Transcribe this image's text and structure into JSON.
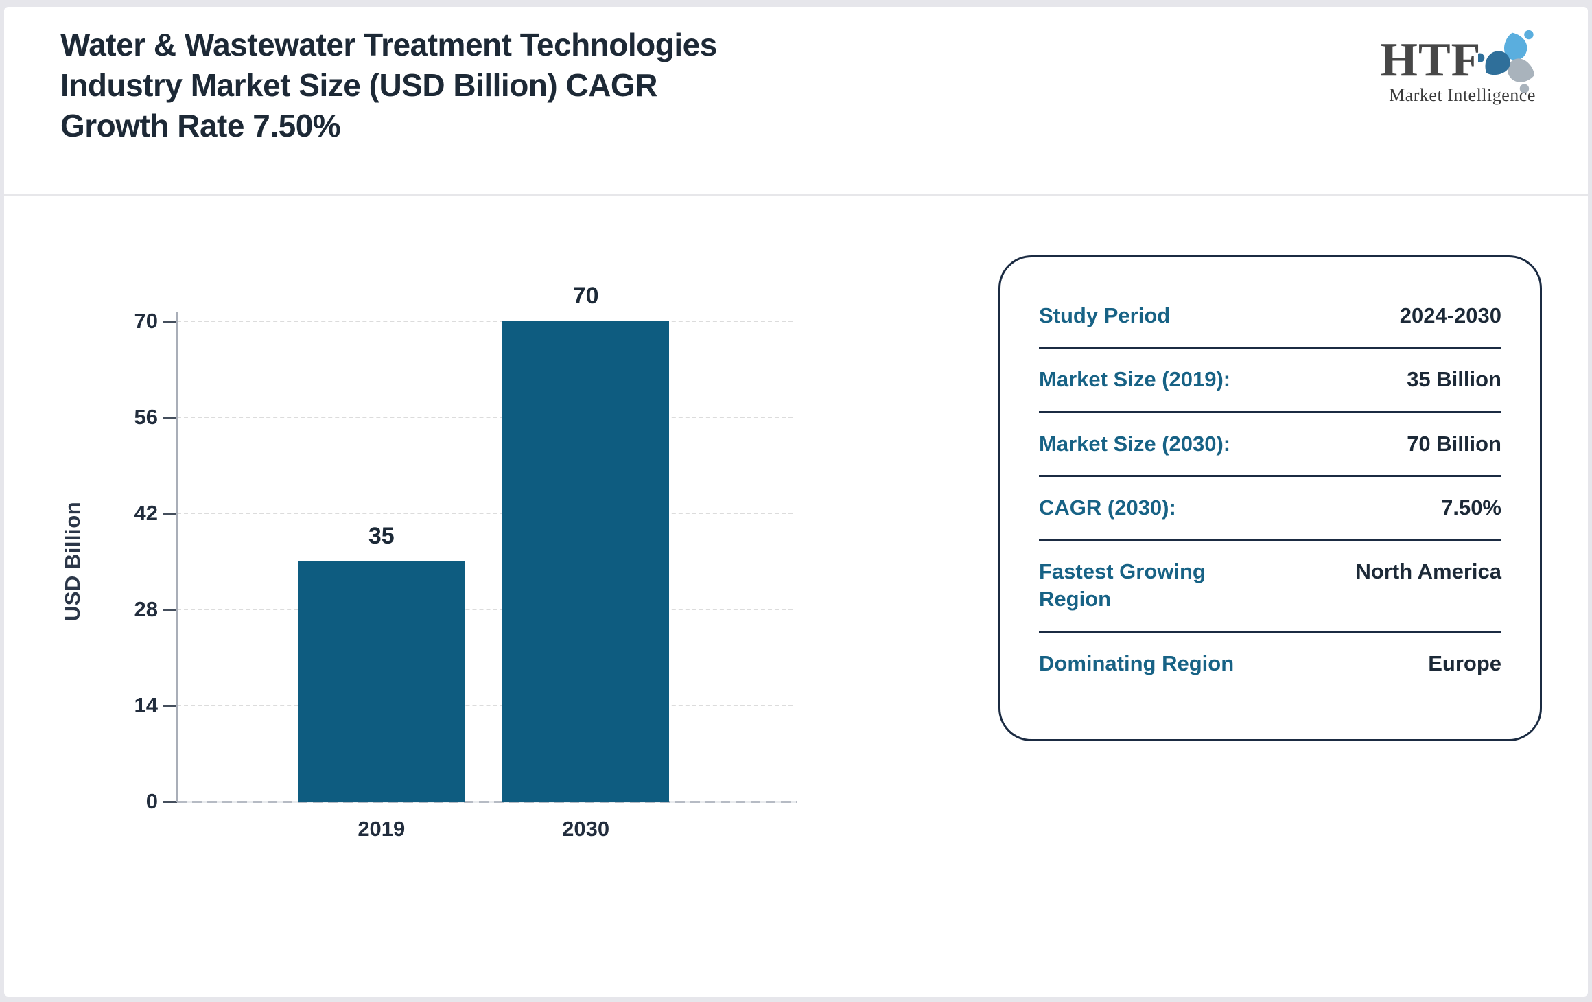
{
  "theme": {
    "page_bg": "#e6e6eb",
    "card_bg": "#ffffff",
    "title_color": "#1d2936",
    "accent_teal": "#176285",
    "value_color": "#1c2937",
    "panel_border": "#1b2b42",
    "bar_color": "#0e5c80",
    "header_divider": "#e7e7ea"
  },
  "header": {
    "title": "Water & Wastewater Treatment Technologies\nIndustry Market Size (USD Billion) CAGR\nGrowth Rate 7.50%",
    "logo": {
      "text": "HTF",
      "subtext": "Market Intelligence",
      "icon_colors": [
        "#5aaede",
        "#a9b3bc",
        "#2f6f9a"
      ]
    }
  },
  "chart_data": {
    "type": "bar",
    "title": "",
    "categories": [
      "2019",
      "2030"
    ],
    "values": [
      35,
      70
    ],
    "value_labels": [
      "35",
      "70"
    ],
    "xlabel": "",
    "ylabel": "USD Billion",
    "ylim": [
      0,
      70
    ],
    "yticks": [
      0,
      14,
      28,
      42,
      56,
      70
    ],
    "grid": "horizontal-dashed",
    "legend": "none",
    "bar_color": "#0e5c80"
  },
  "panel": {
    "rows": [
      {
        "label": "Study Period",
        "value": "2024-2030"
      },
      {
        "label": "Market Size (2019):",
        "value": "35 Billion"
      },
      {
        "label": "Market Size (2030):",
        "value": "70 Billion"
      },
      {
        "label": "CAGR (2030):",
        "value": "7.50%"
      },
      {
        "label": "Fastest Growing Region",
        "value": "North America"
      },
      {
        "label": "Dominating Region",
        "value": "Europe"
      }
    ]
  }
}
